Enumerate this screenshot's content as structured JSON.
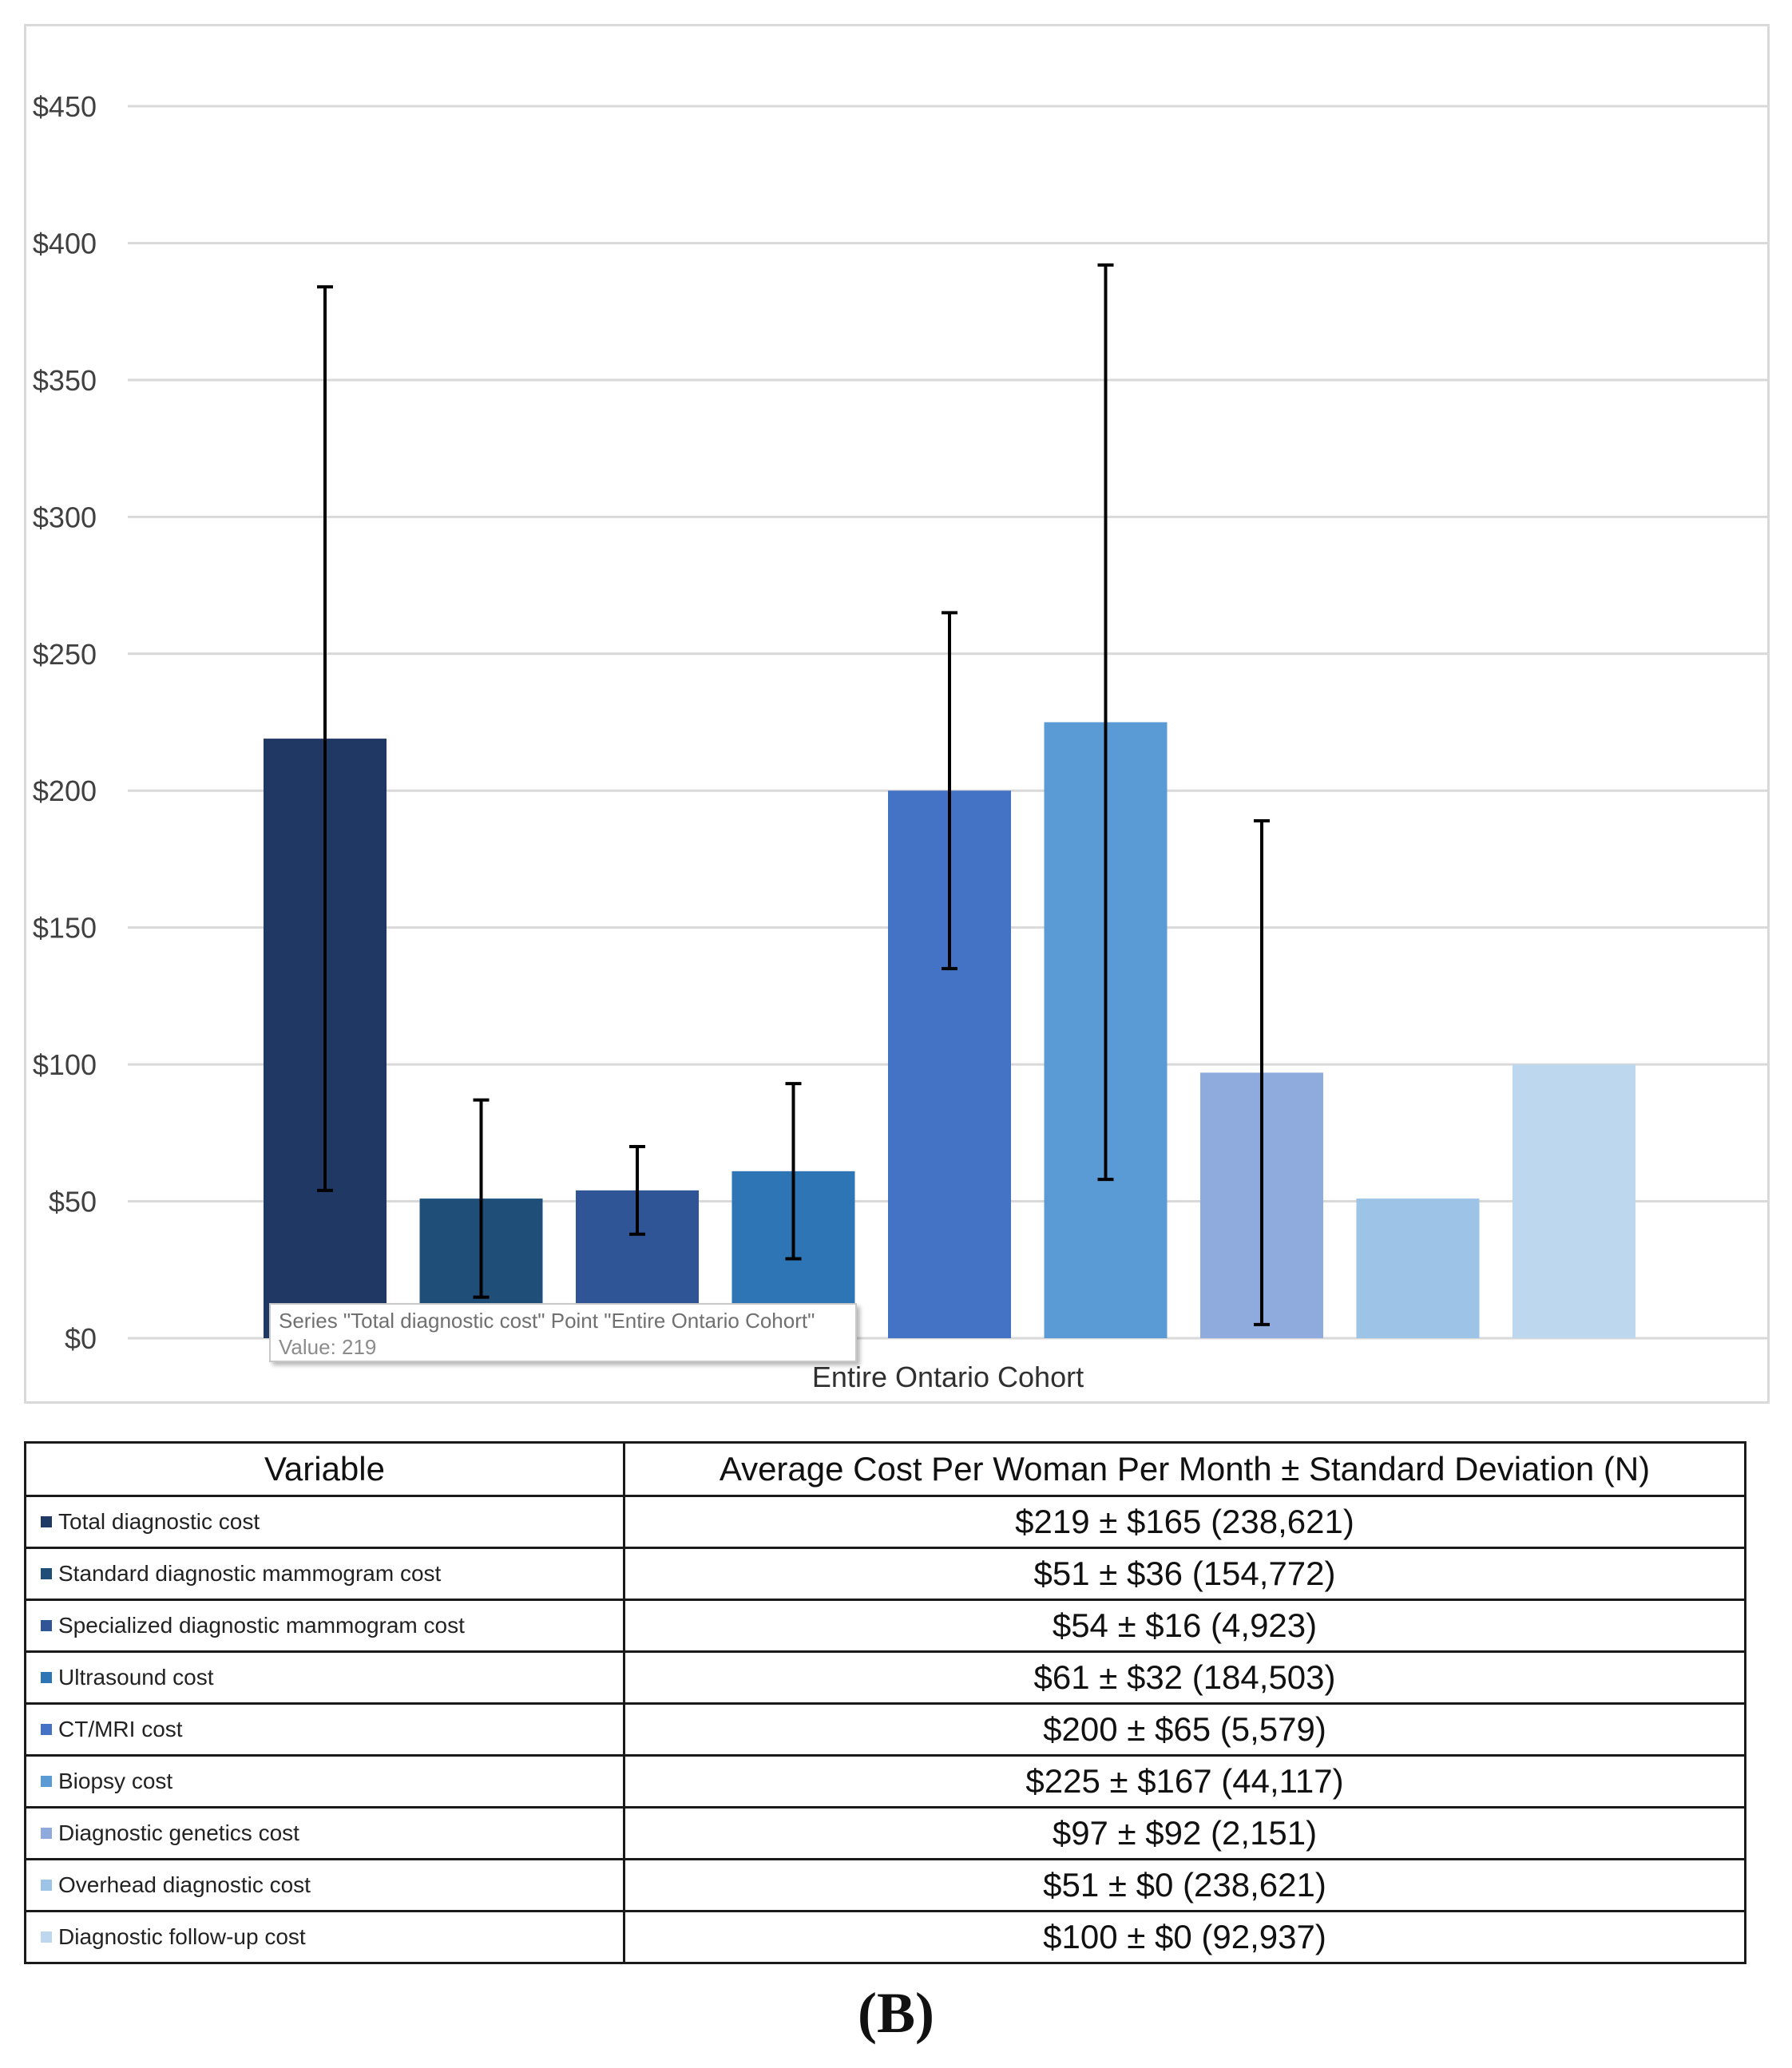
{
  "chart_data": {
    "type": "bar",
    "title": "",
    "xlabel": "",
    "ylabel": "",
    "category": "Entire Ontario Cohort",
    "ylim": [
      0,
      450
    ],
    "y_ticks": [
      0,
      50,
      100,
      150,
      200,
      250,
      300,
      350,
      400,
      450
    ],
    "y_tick_labels": [
      "$0",
      "$50",
      "$100",
      "$150",
      "$200",
      "$250",
      "$300",
      "$350",
      "$400",
      "$450"
    ],
    "grid": true,
    "series": [
      {
        "name": "Total diagnostic cost",
        "value": 219,
        "sd": 165,
        "n": "238,621",
        "color": "#203864"
      },
      {
        "name": "Standard diagnostic mammogram cost",
        "value": 51,
        "sd": 36,
        "n": "154,772",
        "color": "#1f4e79"
      },
      {
        "name": "Specialized diagnostic mammogram cost",
        "value": 54,
        "sd": 16,
        "n": "4,923",
        "color": "#2f5597"
      },
      {
        "name": "Ultrasound cost",
        "value": 61,
        "sd": 32,
        "n": "184,503",
        "color": "#2e75b6"
      },
      {
        "name": "CT/MRI cost",
        "value": 200,
        "sd": 65,
        "n": "5,579",
        "color": "#4472c4"
      },
      {
        "name": "Biopsy cost",
        "value": 225,
        "sd": 167,
        "n": "44,117",
        "color": "#5b9bd5"
      },
      {
        "name": "Diagnostic genetics cost",
        "value": 97,
        "sd": 92,
        "n": "2,151",
        "color": "#8faadc"
      },
      {
        "name": "Overhead diagnostic cost",
        "value": 51,
        "sd": 0,
        "n": "238,621",
        "color": "#9dc3e6"
      },
      {
        "name": "Diagnostic follow-up cost",
        "value": 100,
        "sd": 0,
        "n": "92,937",
        "color": "#bdd7ee"
      }
    ]
  },
  "tooltip": {
    "line1": "Series \"Total diagnostic cost\" Point \"Entire Ontario Cohort\"",
    "line2": "Value: 219"
  },
  "table": {
    "header_variable": "Variable",
    "header_value": "Average Cost Per Woman Per Month ± Standard Deviation (N)",
    "rows": [
      {
        "variable": "Total diagnostic cost",
        "value": "$219 ± $165 (238,621)"
      },
      {
        "variable": "Standard diagnostic mammogram cost",
        "value": "$51 ± $36 (154,772)"
      },
      {
        "variable": "Specialized diagnostic mammogram cost",
        "value": "$54 ± $16 (4,923)"
      },
      {
        "variable": "Ultrasound cost",
        "value": "$61 ± $32 (184,503)"
      },
      {
        "variable": "CT/MRI cost",
        "value": "$200 ± $65 (5,579)"
      },
      {
        "variable": "Biopsy cost",
        "value": "$225 ± $167 (44,117)"
      },
      {
        "variable": "Diagnostic genetics cost",
        "value": "$97 ± $92 (2,151)"
      },
      {
        "variable": "Overhead diagnostic cost",
        "value": "$51 ± $0 (238,621)"
      },
      {
        "variable": "Diagnostic follow-up cost",
        "value": "$100 ± $0 (92,937)"
      }
    ]
  },
  "panel_label": "(B)"
}
